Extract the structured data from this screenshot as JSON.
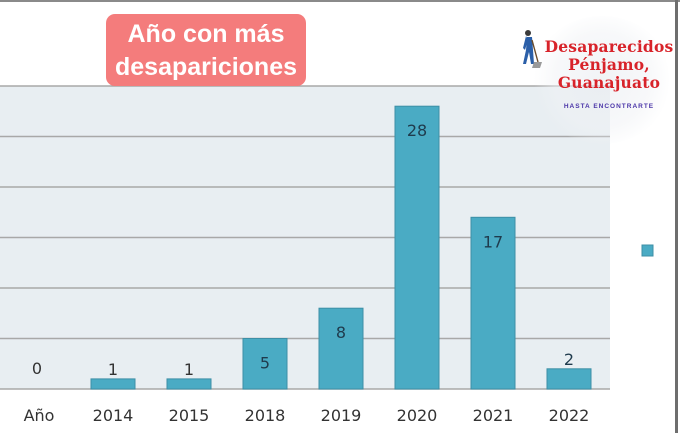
{
  "badge": {
    "line1": "Año con más",
    "line2": "desapariciones",
    "color": "#f47c7c"
  },
  "logo": {
    "line1": "Desaparecidos",
    "line2": "Pénjamo,",
    "line3": "Guanajuato",
    "tagline": "HASTA ENCONTRARTE",
    "icon": "person-sweeping-icon",
    "title_color": "#d8232a",
    "tagline_color": "#4b36a8"
  },
  "chart_data": {
    "type": "bar",
    "title": "Año con más desapariciones",
    "xlabel": "",
    "ylabel": "",
    "categories": [
      "Año",
      "2014",
      "2015",
      "2018",
      "2019",
      "2020",
      "2021",
      "2022"
    ],
    "values": [
      0,
      1,
      1,
      5,
      8,
      28,
      17,
      2
    ],
    "data_labels": [
      "0",
      "1",
      "1",
      "5",
      "8",
      "28",
      "17",
      "2"
    ],
    "ylim": [
      0,
      30
    ],
    "gridline_step": 5,
    "grid": true,
    "y_tick_labels_visible": false,
    "legend": {
      "visible": true,
      "placement": "right",
      "entries": [
        ""
      ]
    },
    "bar_color": "#4aabc4",
    "plot_background": "#e8eef2",
    "gridline_color": "#a8a8a8"
  }
}
